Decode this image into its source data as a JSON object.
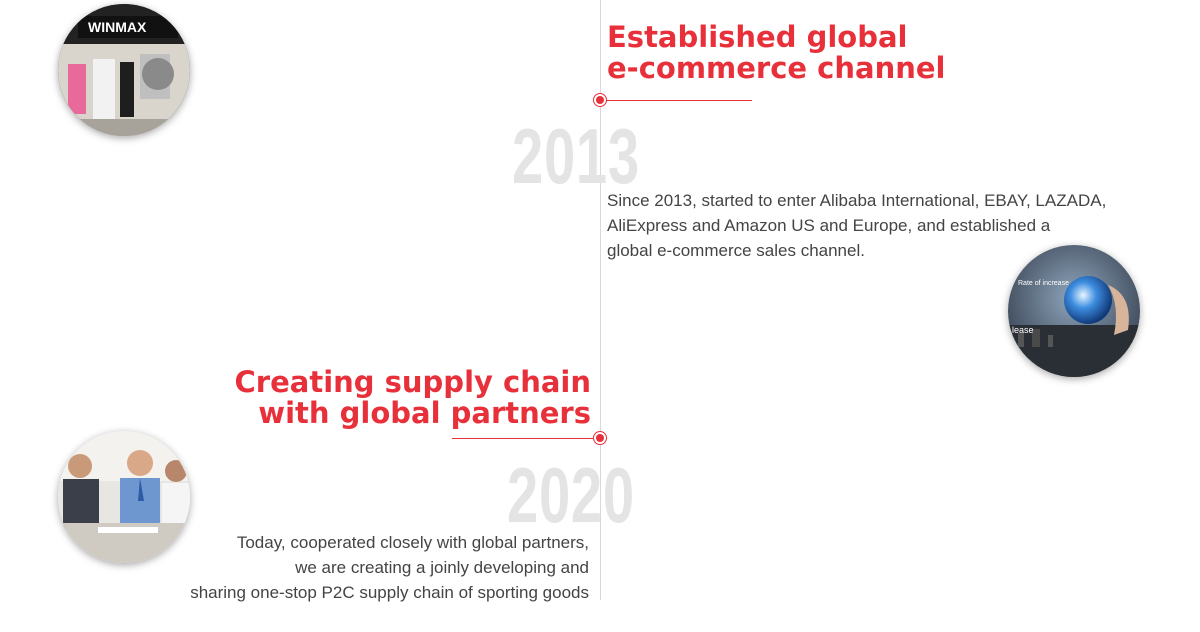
{
  "milestones": [
    {
      "year": "2013",
      "title_line1": "Established global",
      "title_line2": "e-commerce channel",
      "desc_line1": "Since 2013, started to enter Alibaba International, EBAY, LAZADA,",
      "desc_line2": "AliExpress and Amazon US and Europe, and established a",
      "desc_line3": "global e-commerce sales channel.",
      "image_text": "WINMAX"
    },
    {
      "year": "2020",
      "title_line1": "Creating supply chain",
      "title_line2": "with global partners",
      "desc_line1": "Today, cooperated closely with global partners,",
      "desc_line2": "we are creating a joinly developing and",
      "desc_line3": "sharing one-stop P2C supply chain of sporting goods"
    }
  ],
  "globe_image": {
    "label1": "Rate of increase",
    "label2": "lease"
  },
  "colors": {
    "accent": "#e8303a",
    "year": "#e4e4e4",
    "text": "#444444",
    "line": "#d8d8d8"
  }
}
